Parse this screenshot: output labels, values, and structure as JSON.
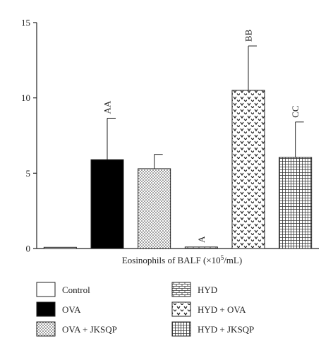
{
  "chart_data": {
    "type": "bar",
    "xlabel_main": "Eosinophils of BALF (×10",
    "xlabel_sup": "5",
    "xlabel_tail": "/mL)",
    "ylim": [
      0,
      15
    ],
    "yticks": [
      0,
      5,
      10,
      15
    ],
    "categories": [
      "Control",
      "OVA",
      "OVA + JKSQP",
      "HYD",
      "HYD + OVA",
      "HYD + JKSQP"
    ],
    "values": [
      0.08,
      5.9,
      5.3,
      0.1,
      10.5,
      6.05
    ],
    "errors": [
      0.03,
      2.75,
      0.95,
      0.05,
      2.95,
      2.35
    ],
    "annotations": [
      "",
      "AA",
      "",
      "A",
      "BB",
      "CC"
    ],
    "patterns": [
      "white",
      "black",
      "dots",
      "bricks",
      "chevrons",
      "grid"
    ],
    "grid": false,
    "legend_placement": "bottom",
    "legend": [
      "Control",
      "OVA",
      "OVA + JKSQP",
      "HYD",
      "HYD + OVA",
      "HYD + JKSQP"
    ]
  }
}
